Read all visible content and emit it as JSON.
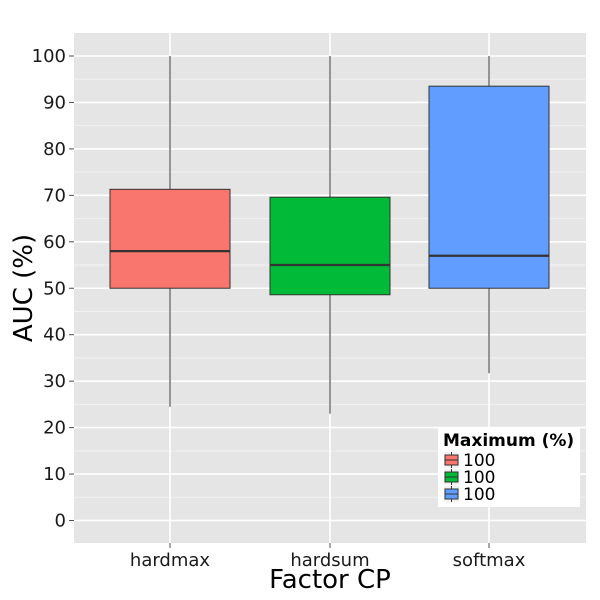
{
  "chart_data": {
    "type": "boxplot",
    "xlabel": "Factor CP",
    "ylabel": "AUC (%)",
    "ylim": [
      -5,
      105
    ],
    "y_ticks": [
      0,
      10,
      20,
      30,
      40,
      50,
      60,
      70,
      80,
      90,
      100
    ],
    "categories": [
      "hardmax",
      "hardsum",
      "softmax"
    ],
    "boxes": [
      {
        "category": "hardmax",
        "min": 24.5,
        "q1": 50.0,
        "median": 58.0,
        "q3": 71.3,
        "max": 100,
        "color": "#F8766D"
      },
      {
        "category": "hardsum",
        "min": 23.0,
        "q1": 48.6,
        "median": 55.0,
        "q3": 69.6,
        "max": 100,
        "color": "#00BA38"
      },
      {
        "category": "softmax",
        "min": 31.7,
        "q1": 50.0,
        "median": 57.0,
        "q3": 93.5,
        "max": 100,
        "color": "#619CFF"
      }
    ],
    "legend": {
      "title": "Maximum (%)",
      "position": "bottom-right",
      "entries": [
        {
          "label": "100",
          "color": "#F8766D"
        },
        {
          "label": "100",
          "color": "#00BA38"
        },
        {
          "label": "100",
          "color": "#619CFF"
        }
      ]
    },
    "grid": true,
    "panel_background": "#E5E5E5",
    "grid_color": "#FFFFFF"
  }
}
